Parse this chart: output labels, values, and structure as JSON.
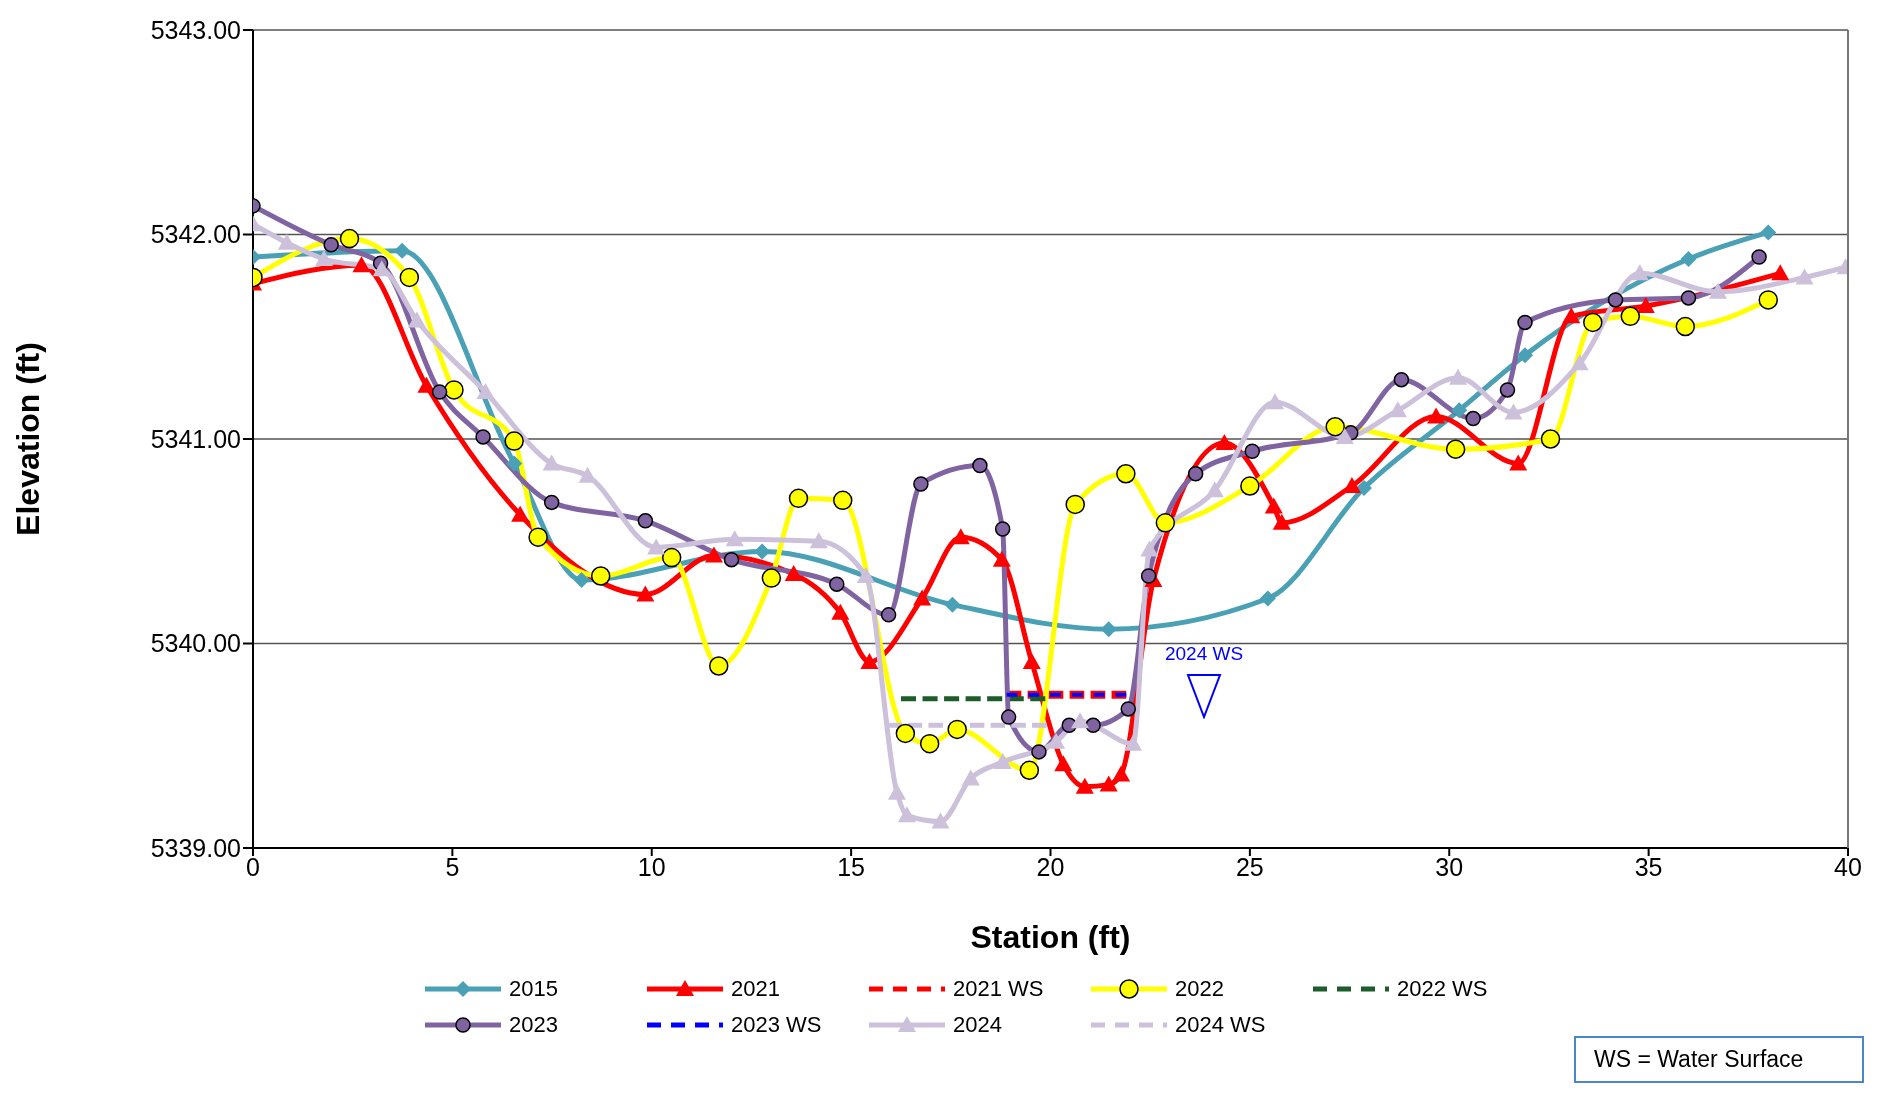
{
  "chart_data": {
    "type": "line",
    "xlabel": "Station (ft)",
    "ylabel": "Elevation (ft)",
    "xlim": [
      0,
      40
    ],
    "xticks": [
      0,
      5,
      10,
      15,
      20,
      25,
      30,
      35,
      40
    ],
    "ylim": [
      5339,
      5343
    ],
    "yticks": [
      {
        "value": 5339,
        "label": "5339.00"
      },
      {
        "value": 5340,
        "label": "5340.00"
      },
      {
        "value": 5341,
        "label": "5341.00"
      },
      {
        "value": 5342,
        "label": "5342.00"
      },
      {
        "value": 5343,
        "label": "5343.00"
      }
    ],
    "grid": "y",
    "legend": "bottom",
    "annotations": [
      {
        "text": "2024 WS",
        "x": 23.85,
        "y": 5339.75
      },
      "WS = Water Surface"
    ],
    "series": [
      {
        "name": "2015",
        "color": "#4aa0b5",
        "marker": "diamond",
        "line_style": "solid",
        "x": [
          0,
          3.74,
          6.55,
          8.24,
          12.77,
          17.54,
          21.46,
          25.45,
          27.86,
          30.25,
          31.9,
          36.0,
          38.0
        ],
        "values": [
          5341.89,
          5341.92,
          5340.88,
          5340.31,
          5340.45,
          5340.19,
          5340.07,
          5340.22,
          5340.76,
          5341.14,
          5341.41,
          5341.88,
          5342.01
        ]
      },
      {
        "name": "2021",
        "color": "#ff0000",
        "marker": "triangle",
        "line_style": "solid",
        "x": [
          0,
          2.72,
          4.35,
          6.7,
          9.84,
          11.56,
          13.56,
          14.73,
          15.46,
          16.78,
          17.75,
          18.78,
          19.53,
          20.32,
          20.86,
          21.46,
          21.77,
          22.58,
          24.36,
          25.6,
          25.8,
          27.56,
          29.67,
          31.73,
          33.06,
          34.93,
          38.3
        ],
        "values": [
          5341.76,
          5341.85,
          5341.26,
          5340.63,
          5340.24,
          5340.43,
          5340.34,
          5340.15,
          5339.91,
          5340.22,
          5340.52,
          5340.41,
          5339.91,
          5339.41,
          5339.3,
          5339.31,
          5339.36,
          5340.31,
          5340.98,
          5340.67,
          5340.59,
          5340.77,
          5341.11,
          5340.88,
          5341.6,
          5341.65,
          5341.81
        ]
      },
      {
        "name": "2021 WS",
        "color": "#ff0000",
        "marker": "none",
        "line_style": "dashed",
        "x": [
          18.9,
          21.9
        ],
        "values": [
          5339.75,
          5339.75
        ]
      },
      {
        "name": "2022",
        "color": "#ffff00",
        "marker": "circle",
        "line_style": "solid",
        "x": [
          0,
          2.42,
          3.92,
          5.04,
          6.55,
          7.15,
          8.72,
          10.5,
          11.68,
          13.0,
          13.68,
          14.79,
          16.36,
          16.97,
          17.66,
          19.47,
          20.62,
          21.89,
          22.88,
          25.0,
          27.14,
          30.16,
          32.54,
          33.6,
          34.54,
          35.92,
          38.0
        ],
        "values": [
          5341.79,
          5341.98,
          5341.79,
          5341.24,
          5340.99,
          5340.52,
          5340.33,
          5340.42,
          5339.89,
          5340.32,
          5340.71,
          5340.7,
          5339.56,
          5339.51,
          5339.58,
          5339.38,
          5340.68,
          5340.83,
          5340.59,
          5340.77,
          5341.06,
          5340.95,
          5341.0,
          5341.57,
          5341.6,
          5341.55,
          5341.68
        ]
      },
      {
        "name": "2022 WS",
        "color": "#1e5c2a",
        "marker": "none",
        "line_style": "dashed",
        "x": [
          16.25,
          19.87
        ],
        "values": [
          5339.73,
          5339.73
        ]
      },
      {
        "name": "2023",
        "color": "#8064a2",
        "marker": "circle",
        "line_style": "solid",
        "x": [
          0,
          1.96,
          3.2,
          4.68,
          5.77,
          7.49,
          9.84,
          12.0,
          14.64,
          15.94,
          16.75,
          18.23,
          18.8,
          18.95,
          19.71,
          20.47,
          21.07,
          21.95,
          22.46,
          23.64,
          25.06,
          27.53,
          28.8,
          30.6,
          31.46,
          31.9,
          34.17,
          36.0,
          37.77
        ],
        "values": [
          5342.14,
          5341.95,
          5341.86,
          5341.23,
          5341.01,
          5340.69,
          5340.6,
          5340.41,
          5340.29,
          5340.14,
          5340.78,
          5340.87,
          5340.56,
          5339.64,
          5339.47,
          5339.6,
          5339.6,
          5339.68,
          5340.33,
          5340.83,
          5340.94,
          5341.03,
          5341.29,
          5341.1,
          5341.24,
          5341.57,
          5341.68,
          5341.69,
          5341.89
        ]
      },
      {
        "name": "2023 WS",
        "color": "#0000ff",
        "marker": "none",
        "line_style": "dashed",
        "x": [
          18.9,
          21.9
        ],
        "values": [
          5339.75,
          5339.75
        ]
      },
      {
        "name": "2024",
        "color": "#ccc0da",
        "marker": "triangle",
        "line_style": "solid",
        "x": [
          0,
          0.85,
          1.78,
          3.23,
          4.11,
          5.83,
          7.49,
          8.39,
          10.11,
          12.08,
          14.19,
          15.37,
          16.15,
          16.4,
          17.24,
          18.0,
          18.8,
          20.14,
          20.74,
          22.07,
          22.48,
          24.12,
          25.63,
          27.38,
          28.71,
          30.22,
          31.61,
          33.27,
          34.78,
          36.74,
          38.91,
          39.94
        ],
        "values": [
          5342.05,
          5341.96,
          5341.88,
          5341.83,
          5341.58,
          5341.23,
          5340.88,
          5340.82,
          5340.47,
          5340.51,
          5340.5,
          5340.33,
          5339.27,
          5339.16,
          5339.13,
          5339.34,
          5339.42,
          5339.52,
          5339.62,
          5339.51,
          5340.46,
          5340.75,
          5341.18,
          5341.01,
          5341.14,
          5341.3,
          5341.13,
          5341.37,
          5341.81,
          5341.72,
          5341.79,
          5341.84
        ]
      },
      {
        "name": "2024 WS",
        "color": "#ccc0da",
        "marker": "none",
        "line_style": "dashed",
        "x": [
          15.9,
          19.9
        ],
        "values": [
          5339.6,
          5339.6
        ]
      }
    ]
  }
}
